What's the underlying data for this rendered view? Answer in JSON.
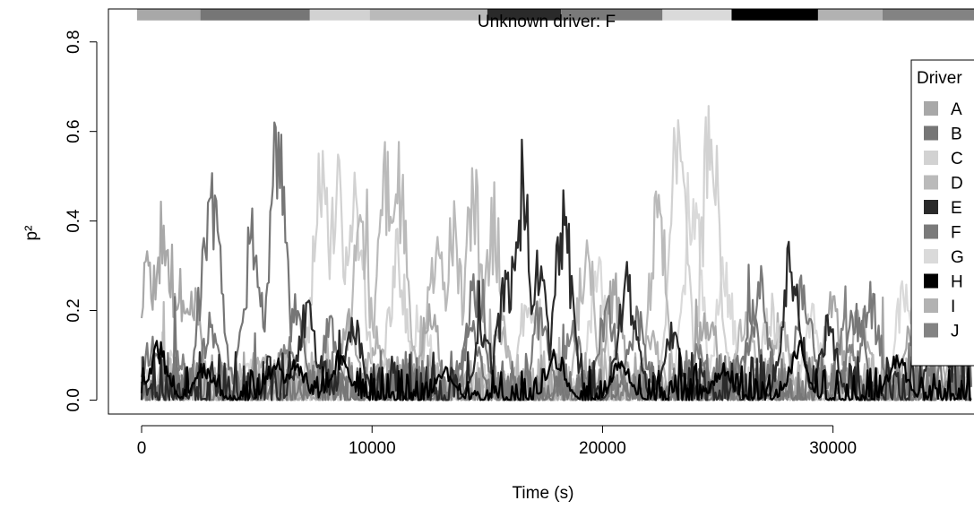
{
  "chart_data": {
    "type": "line",
    "title": "Unknown driver: F",
    "xlabel": "Time (s)",
    "ylabel": "p²",
    "xlim": [
      -1440,
      37440
    ],
    "ylim": [
      -0.0312,
      0.8736
    ],
    "x_ticks": [
      0,
      10000,
      20000,
      30000
    ],
    "x_tick_labels": [
      "0",
      "10000",
      "20000",
      "30000"
    ],
    "y_ticks": [
      0.0,
      0.2,
      0.4,
      0.6,
      0.8
    ],
    "y_tick_labels": [
      "0.0",
      "0.2",
      "0.4",
      "0.6",
      "0.8"
    ],
    "grid": false,
    "legend": {
      "title": "Driver",
      "placement": "right",
      "entries": [
        "A",
        "B",
        "C",
        "D",
        "E",
        "F",
        "G",
        "H",
        "I",
        "J"
      ]
    },
    "colors": {
      "A": "#a8a8a8",
      "B": "#767676",
      "C": "#d2d2d2",
      "D": "#bababa",
      "E": "#2a2a2a",
      "F": "#7a7a7a",
      "G": "#dadada",
      "H": "#000000",
      "I": "#b2b2b2",
      "J": "#838383"
    },
    "segment_bar": [
      {
        "driver": "A",
        "start": -200,
        "end": 2550
      },
      {
        "driver": "B",
        "start": 2550,
        "end": 7300
      },
      {
        "driver": "C",
        "start": 7300,
        "end": 9900
      },
      {
        "driver": "D",
        "start": 9900,
        "end": 15000
      },
      {
        "driver": "E",
        "start": 15000,
        "end": 18200
      },
      {
        "driver": "F",
        "start": 18200,
        "end": 22600
      },
      {
        "driver": "G",
        "start": 22600,
        "end": 25600
      },
      {
        "driver": "H",
        "start": 25600,
        "end": 29350
      },
      {
        "driver": "I",
        "start": 29350,
        "end": 32150
      },
      {
        "driver": "J",
        "start": 32150,
        "end": 36450
      }
    ],
    "segment_bar_level": 0.87,
    "series": [
      {
        "name": "A",
        "peaks": [
          [
            350,
            0.38
          ],
          [
            1000,
            0.5
          ],
          [
            1700,
            0.32
          ],
          [
            2200,
            0.27
          ],
          [
            9000,
            0.22
          ],
          [
            12500,
            0.25
          ],
          [
            20500,
            0.3
          ],
          [
            24500,
            0.24
          ],
          [
            30000,
            0.26
          ],
          [
            33500,
            0.22
          ]
        ],
        "base": 0.05
      },
      {
        "name": "B",
        "peaks": [
          [
            2900,
            0.51
          ],
          [
            3100,
            0.51
          ],
          [
            4800,
            0.45
          ],
          [
            5900,
            0.67
          ],
          [
            6700,
            0.25
          ],
          [
            14300,
            0.2
          ],
          [
            21500,
            0.22
          ],
          [
            26500,
            0.2
          ],
          [
            31000,
            0.24
          ]
        ],
        "base": 0.05
      },
      {
        "name": "C",
        "peaks": [
          [
            7800,
            0.6
          ],
          [
            8500,
            0.57
          ],
          [
            9300,
            0.53
          ],
          [
            11100,
            0.39
          ],
          [
            16800,
            0.3
          ],
          [
            23300,
            0.72
          ],
          [
            24700,
            0.75
          ],
          [
            27300,
            0.25
          ]
        ],
        "base": 0.04
      },
      {
        "name": "D",
        "peaks": [
          [
            9500,
            0.5
          ],
          [
            10600,
            0.62
          ],
          [
            11200,
            0.58
          ],
          [
            12800,
            0.43
          ],
          [
            13500,
            0.48
          ],
          [
            14400,
            0.55
          ],
          [
            15300,
            0.5
          ],
          [
            19300,
            0.4
          ],
          [
            22400,
            0.5
          ],
          [
            26200,
            0.22
          ],
          [
            34000,
            0.2
          ]
        ],
        "base": 0.05
      },
      {
        "name": "E",
        "peaks": [
          [
            7200,
            0.24
          ],
          [
            9200,
            0.2
          ],
          [
            14800,
            0.18
          ],
          [
            15800,
            0.3
          ],
          [
            16500,
            0.61
          ],
          [
            17200,
            0.35
          ],
          [
            18300,
            0.49
          ],
          [
            21100,
            0.32
          ],
          [
            23000,
            0.18
          ],
          [
            28200,
            0.4
          ],
          [
            29800,
            0.2
          ],
          [
            34500,
            0.21
          ]
        ],
        "base": 0.05
      },
      {
        "name": "F",
        "peaks": [
          [
            500,
            0.15
          ],
          [
            3000,
            0.2
          ],
          [
            8200,
            0.2
          ],
          [
            14500,
            0.33
          ],
          [
            17300,
            0.24
          ],
          [
            20200,
            0.25
          ],
          [
            26800,
            0.34
          ],
          [
            28700,
            0.3
          ],
          [
            31600,
            0.28
          ],
          [
            35200,
            0.31
          ]
        ],
        "base": 0.04
      },
      {
        "name": "G",
        "peaks": [
          [
            1200,
            0.14
          ],
          [
            4600,
            0.12
          ],
          [
            12200,
            0.24
          ],
          [
            19800,
            0.33
          ],
          [
            23900,
            0.6
          ],
          [
            25300,
            0.35
          ],
          [
            29100,
            0.22
          ],
          [
            33100,
            0.3
          ]
        ],
        "base": 0.03
      },
      {
        "name": "H",
        "peaks": [
          [
            700,
            0.14
          ],
          [
            2700,
            0.09
          ],
          [
            5800,
            0.1
          ],
          [
            6700,
            0.1
          ],
          [
            8600,
            0.12
          ],
          [
            13200,
            0.08
          ],
          [
            18000,
            0.12
          ],
          [
            20800,
            0.1
          ],
          [
            25200,
            0.09
          ],
          [
            28500,
            0.14
          ],
          [
            32800,
            0.12
          ]
        ],
        "base": 0.035
      },
      {
        "name": "I",
        "peaks": [
          [
            5200,
            0.12
          ],
          [
            10200,
            0.18
          ],
          [
            15600,
            0.2
          ],
          [
            22100,
            0.18
          ],
          [
            27700,
            0.22
          ],
          [
            31200,
            0.25
          ],
          [
            34300,
            0.24
          ],
          [
            35700,
            0.18
          ]
        ],
        "base": 0.04
      },
      {
        "name": "J",
        "peaks": [
          [
            1600,
            0.12
          ],
          [
            6300,
            0.15
          ],
          [
            11600,
            0.1
          ],
          [
            18700,
            0.2
          ],
          [
            24100,
            0.15
          ],
          [
            30500,
            0.2
          ],
          [
            35900,
            0.15
          ]
        ],
        "base": 0.035
      }
    ]
  }
}
